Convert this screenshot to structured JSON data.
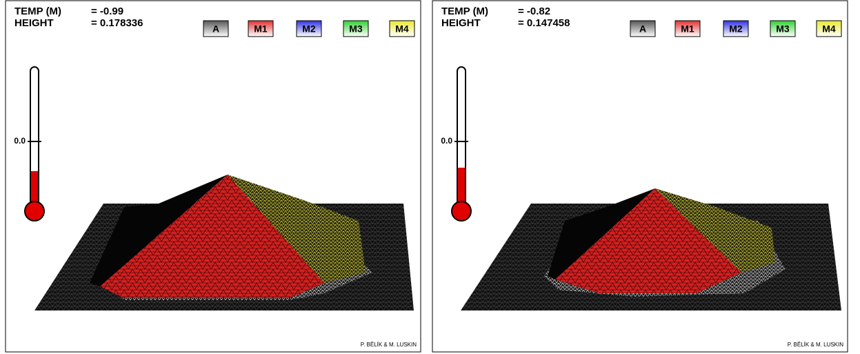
{
  "panels": [
    {
      "temp_label": "TEMP (M)",
      "temp_value": "= -0.99",
      "height_label": "HEIGHT",
      "height_value": "= 0.178336",
      "legend": [
        "A",
        "M1",
        "M2",
        "M3",
        "M4"
      ],
      "thermometer_tick": "0.0",
      "credit": "P. BĚLÍK & M. LUSKIN"
    },
    {
      "temp_label": "TEMP (M)",
      "temp_value": "= -0.82",
      "height_label": "HEIGHT",
      "height_value": "= 0.147458",
      "legend": [
        "A",
        "M1",
        "M2",
        "M3",
        "M4"
      ],
      "thermometer_tick": "0.0",
      "credit": "P. BĚLÍK & M. LUSKIN"
    }
  ]
}
